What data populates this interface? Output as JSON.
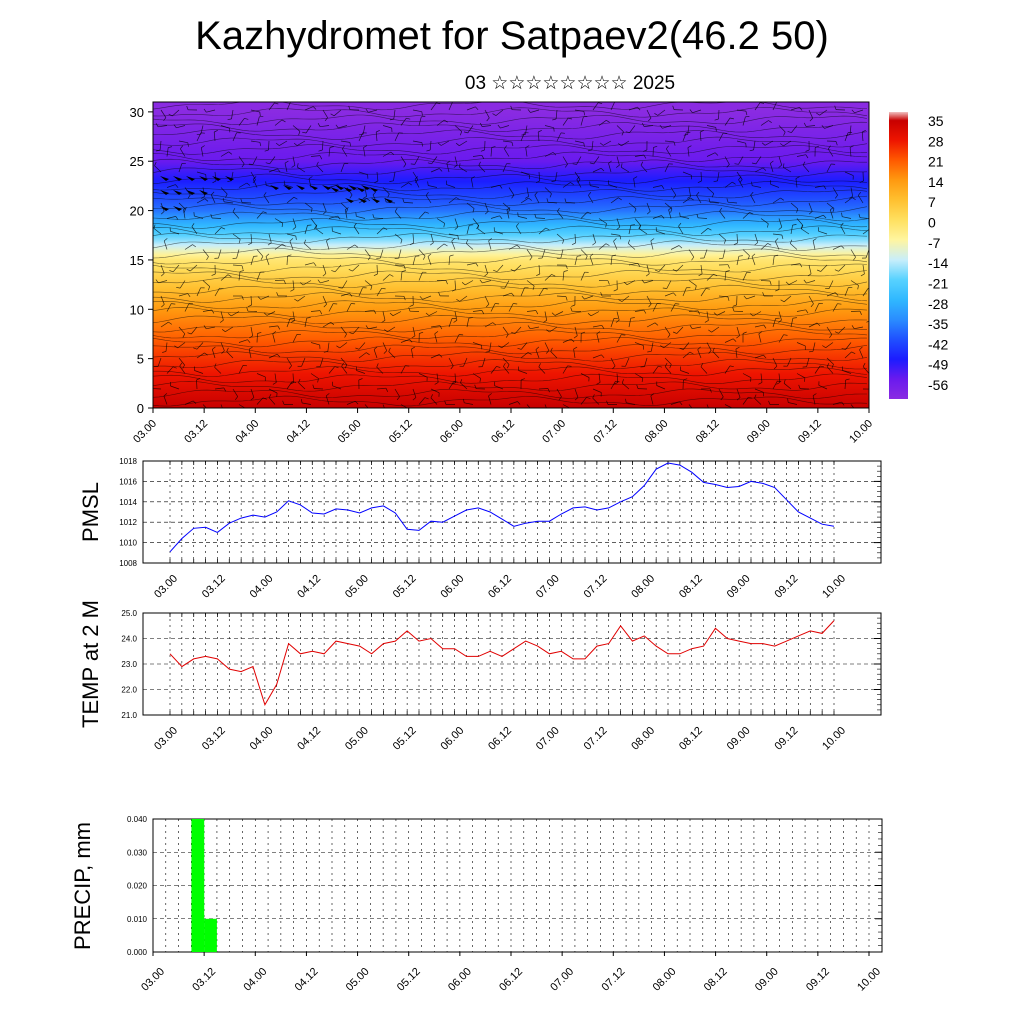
{
  "title": "Kazhydromet for Satpaev2(46.2 50)",
  "subtitle": "03 ☆☆☆☆☆☆☆☆ 2025",
  "x_ticks": [
    "03.00",
    "03.12",
    "04.00",
    "04.12",
    "05.00",
    "05.12",
    "06.00",
    "06.12",
    "07.00",
    "07.12",
    "08.00",
    "08.12",
    "09.00",
    "09.12",
    "10.00"
  ],
  "chart_data": [
    {
      "type": "heatmap",
      "title": "",
      "xlabel": "",
      "ylabel": "",
      "ylim": [
        0,
        31
      ],
      "y_ticks": [
        0,
        5,
        10,
        15,
        20,
        25,
        30
      ],
      "colorbar_labels": [
        "35",
        "28",
        "21",
        "14",
        "7",
        "0",
        "-7",
        "-14",
        "-21",
        "-28",
        "-35",
        "-42",
        "-49",
        "-56"
      ],
      "colorbar_range": [
        -63,
        38
      ],
      "temperature_by_level": {
        "levels": [
          0,
          5,
          10,
          15,
          17,
          20,
          25,
          30
        ],
        "values": [
          35,
          25,
          14,
          -2,
          -18,
          -38,
          -56,
          -63
        ]
      }
    },
    {
      "type": "line",
      "ylabel": "PMSL",
      "ylim": [
        1008,
        1018
      ],
      "y_ticks": [
        "1008",
        "1010",
        "1012",
        "1014",
        "1016",
        "1018"
      ],
      "color": "#0000ff",
      "x_hours": [
        0,
        3,
        6,
        9,
        12,
        15,
        18,
        21,
        24,
        27,
        30,
        33,
        36,
        39,
        42,
        45,
        48,
        51,
        54,
        57,
        60,
        63,
        66,
        69,
        72,
        75,
        78,
        81,
        84,
        87,
        90,
        93,
        96,
        99,
        102,
        105,
        108,
        111,
        114,
        117,
        120,
        123,
        126,
        129,
        132,
        135,
        138,
        141,
        144,
        147,
        150,
        153,
        156,
        159,
        162,
        165,
        168
      ],
      "values": [
        1009.1,
        1010.4,
        1011.4,
        1011.5,
        1011.0,
        1011.9,
        1012.4,
        1012.7,
        1012.5,
        1013.0,
        1014.1,
        1013.7,
        1012.9,
        1012.8,
        1013.3,
        1013.2,
        1012.9,
        1013.4,
        1013.6,
        1012.9,
        1011.3,
        1011.2,
        1012.1,
        1012.0,
        1012.6,
        1013.2,
        1013.4,
        1013.0,
        1012.3,
        1011.6,
        1011.9,
        1012.1,
        1012.1,
        1012.8,
        1013.4,
        1013.5,
        1013.2,
        1013.4,
        1014.0,
        1014.5,
        1015.6,
        1017.2,
        1017.8,
        1017.6,
        1016.9,
        1015.9,
        1015.7,
        1015.4,
        1015.5,
        1016.0,
        1015.8,
        1015.4,
        1014.2,
        1013.0,
        1012.4,
        1011.8,
        1011.6
      ]
    },
    {
      "type": "line",
      "ylabel": "TEMP at 2 M",
      "ylim": [
        21.0,
        25.0
      ],
      "y_ticks": [
        "21.0",
        "22.0",
        "23.0",
        "24.0",
        "25.0"
      ],
      "color": "#e00000",
      "x_hours": [
        0,
        3,
        6,
        9,
        12,
        15,
        18,
        21,
        24,
        27,
        30,
        33,
        36,
        39,
        42,
        45,
        48,
        51,
        54,
        57,
        60,
        63,
        66,
        69,
        72,
        75,
        78,
        81,
        84,
        87,
        90,
        93,
        96,
        99,
        102,
        105,
        108,
        111,
        114,
        117,
        120,
        123,
        126,
        129,
        132,
        135,
        138,
        141,
        144,
        147,
        150,
        153,
        156,
        159,
        162,
        165,
        168
      ],
      "values": [
        23.4,
        22.9,
        23.2,
        23.3,
        23.2,
        22.8,
        22.7,
        22.9,
        21.4,
        22.2,
        23.8,
        23.4,
        23.5,
        23.4,
        23.9,
        23.8,
        23.7,
        23.4,
        23.8,
        23.9,
        24.3,
        23.9,
        24.0,
        23.6,
        23.6,
        23.3,
        23.3,
        23.5,
        23.3,
        23.6,
        23.9,
        23.7,
        23.4,
        23.5,
        23.2,
        23.2,
        23.7,
        23.8,
        24.5,
        23.9,
        24.1,
        23.7,
        23.4,
        23.4,
        23.6,
        23.7,
        24.4,
        24.0,
        23.9,
        23.8,
        23.8,
        23.7,
        23.9,
        24.1,
        24.3,
        24.2,
        24.7
      ]
    },
    {
      "type": "bar",
      "ylabel": "PRECIP, mm",
      "ylim": [
        0,
        0.04
      ],
      "y_ticks": [
        "0.000",
        "0.010",
        "0.020",
        "0.030",
        "0.040"
      ],
      "color": "#00ff00",
      "bars": [
        {
          "start_hour": 9,
          "end_hour": 12,
          "value": 0.04
        },
        {
          "start_hour": 12,
          "end_hour": 15,
          "value": 0.01
        }
      ]
    }
  ]
}
